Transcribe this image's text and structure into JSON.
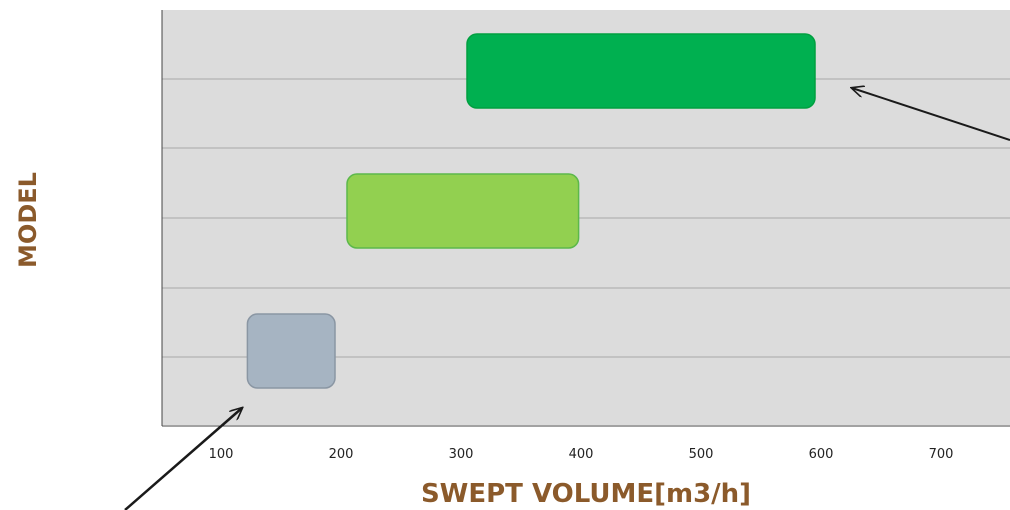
{
  "chart_data": {
    "type": "range-bar",
    "xlabel": "SWEPT VOLUME[m3/h]",
    "ylabel": "MODEL",
    "xlim": [
      50,
      750
    ],
    "xticks": [
      100,
      200,
      300,
      400,
      500,
      600,
      700
    ],
    "grid": "horizontal",
    "rows": [
      {
        "start": 305,
        "end": 595,
        "color": "#00b050",
        "stroke": "#00a040"
      },
      {
        "start": 205,
        "end": 398,
        "color": "#92d050",
        "stroke": "#5cb84a"
      },
      {
        "start": 122,
        "end": 195,
        "color": "#a6b4c2",
        "stroke": "#8a96a3"
      }
    ]
  },
  "colors": {
    "plot_background": "#dcdcdc",
    "grid": "#a8a8a8",
    "axis": "#444444",
    "title": "#8B5A2B",
    "arrow": "#1a1a1a"
  }
}
